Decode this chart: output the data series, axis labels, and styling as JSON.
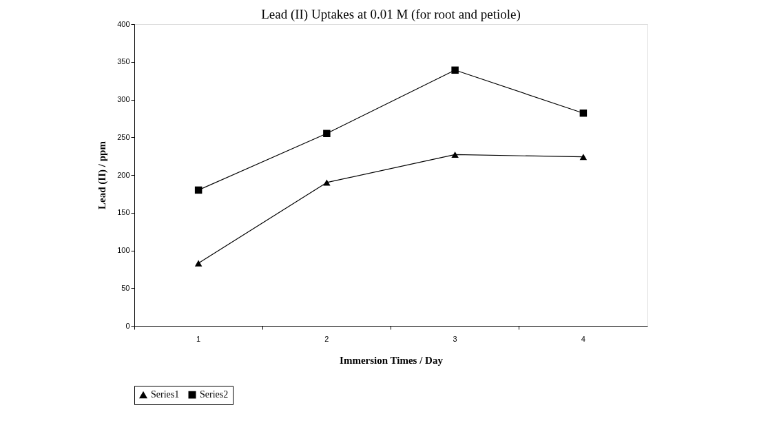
{
  "chart_data": {
    "type": "line",
    "title": "Lead (II) Uptakes at 0.01 M (for root and petiole)",
    "xlabel": "Immersion Times / Day",
    "ylabel": "Lead (II) / ppm",
    "categories": [
      "1",
      "2",
      "3",
      "4"
    ],
    "series": [
      {
        "name": "Series1",
        "color": "#000000",
        "marker": "triangle",
        "values": [
          83,
          190,
          227,
          224
        ]
      },
      {
        "name": "Series2",
        "color": "#000000",
        "marker": "square",
        "values": [
          180,
          255,
          339,
          282
        ]
      }
    ],
    "ylim": [
      0,
      400
    ],
    "yticks": [
      0,
      50,
      100,
      150,
      200,
      250,
      300,
      350,
      400
    ],
    "grid": false,
    "legend": "bottom",
    "line_style": "solid"
  }
}
